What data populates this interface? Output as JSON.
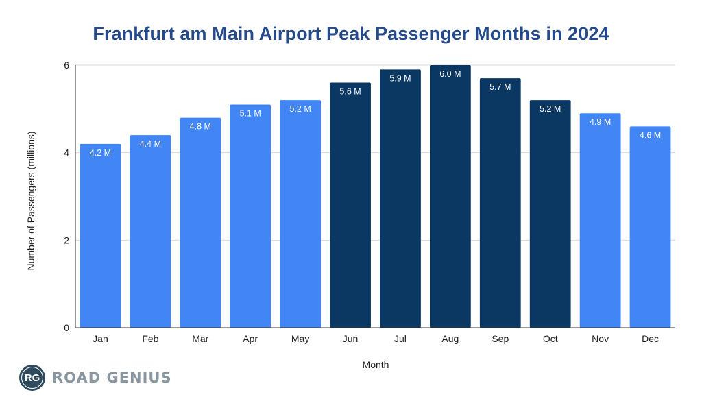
{
  "chart_data": {
    "type": "bar",
    "title": "Frankfurt am Main Airport Peak Passenger Months in 2024",
    "xlabel": "Month",
    "ylabel": "Number of Passengers (millions)",
    "ylim": [
      0,
      6
    ],
    "yticks": [
      0,
      2,
      4,
      6
    ],
    "grid": true,
    "legend": "none",
    "categories": [
      "Jan",
      "Feb",
      "Mar",
      "Apr",
      "May",
      "Jun",
      "Jul",
      "Aug",
      "Sep",
      "Oct",
      "Nov",
      "Dec"
    ],
    "values": [
      4.2,
      4.4,
      4.8,
      5.1,
      5.2,
      5.6,
      5.9,
      6.0,
      5.7,
      5.2,
      4.9,
      4.6
    ],
    "data_labels": [
      "4.2 M",
      "4.4 M",
      "4.8 M",
      "5.1 M",
      "5.2 M",
      "5.6 M",
      "5.9 M",
      "6.0 M",
      "5.7 M",
      "5.2 M",
      "4.9 M",
      "4.6 M"
    ],
    "highlighted": [
      false,
      false,
      false,
      false,
      false,
      true,
      true,
      true,
      true,
      true,
      false,
      false
    ],
    "colors": {
      "normal": "#4285f4",
      "peak": "#0b3862",
      "title": "#244a8c"
    }
  },
  "branding": {
    "logo_initials": "RG",
    "logo_text": "ROAD GENIUS"
  }
}
